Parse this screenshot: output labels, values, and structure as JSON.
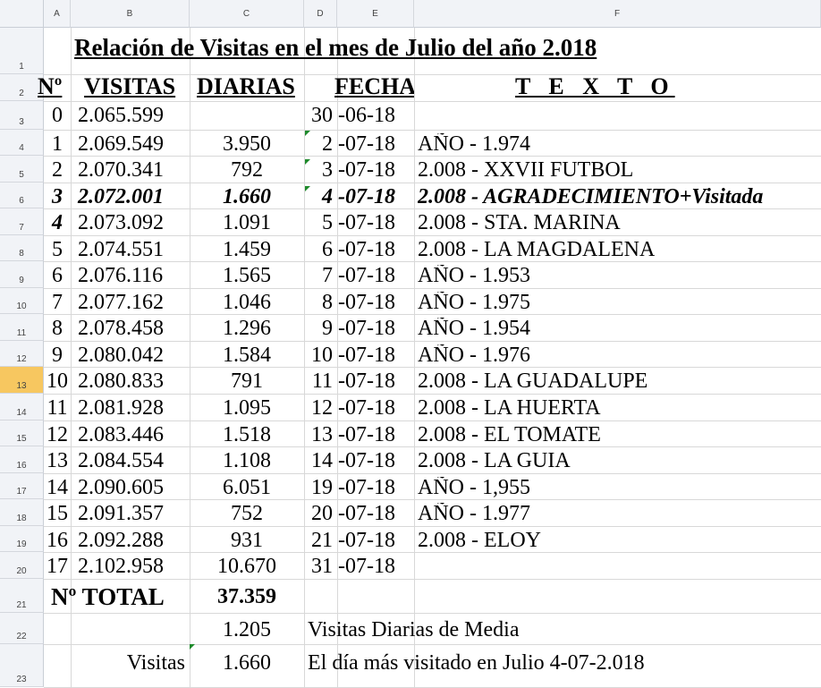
{
  "columns": [
    "A",
    "B",
    "C",
    "D",
    "E",
    "F"
  ],
  "title": "Relación de Visitas en el mes de Julio del año 2.018",
  "headers": {
    "n": "Nº",
    "visitas": "VISITAS",
    "diarias": "DIARIAS",
    "fecha": "FECHA",
    "texto": "T E X T O"
  },
  "rows": [
    {
      "row": "3",
      "n": "0",
      "visitas": "2.065.599",
      "diarias": "",
      "dia": "30",
      "mes": "-06-18",
      "texto": ""
    },
    {
      "row": "4",
      "n": "1",
      "visitas": "2.069.549",
      "diarias": "3.950",
      "dia": "2",
      "mes": "-07-18",
      "texto": "AÑO - 1.974"
    },
    {
      "row": "5",
      "n": "2",
      "visitas": "2.070.341",
      "diarias": "792",
      "dia": "3",
      "mes": "-07-18",
      "texto": "2.008 - XXVII FUTBOL"
    },
    {
      "row": "6",
      "n": "3",
      "visitas": "2.072.001",
      "diarias": "1.660",
      "dia": "4",
      "mes": "-07-18",
      "texto": "2.008 - AGRADECIMIENTO+Visitada"
    },
    {
      "row": "7",
      "n": "4",
      "visitas": "2.073.092",
      "diarias": "1.091",
      "dia": "5",
      "mes": "-07-18",
      "texto": "2.008 - STA. MARINA"
    },
    {
      "row": "8",
      "n": "5",
      "visitas": "2.074.551",
      "diarias": "1.459",
      "dia": "6",
      "mes": "-07-18",
      "texto": "2.008 - LA MAGDALENA"
    },
    {
      "row": "9",
      "n": "6",
      "visitas": "2.076.116",
      "diarias": "1.565",
      "dia": "7",
      "mes": "-07-18",
      "texto": "AÑO - 1.953"
    },
    {
      "row": "10",
      "n": "7",
      "visitas": "2.077.162",
      "diarias": "1.046",
      "dia": "8",
      "mes": "-07-18",
      "texto": "AÑO - 1.975"
    },
    {
      "row": "11",
      "n": "8",
      "visitas": "2.078.458",
      "diarias": "1.296",
      "dia": "9",
      "mes": "-07-18",
      "texto": "AÑO - 1.954"
    },
    {
      "row": "12",
      "n": "9",
      "visitas": "2.080.042",
      "diarias": "1.584",
      "dia": "10",
      "mes": "-07-18",
      "texto": "AÑO - 1.976"
    },
    {
      "row": "13",
      "n": "10",
      "visitas": "2.080.833",
      "diarias": "791",
      "dia": "11",
      "mes": "-07-18",
      "texto": "2.008 - LA GUADALUPE"
    },
    {
      "row": "14",
      "n": "11",
      "visitas": "2.081.928",
      "diarias": "1.095",
      "dia": "12",
      "mes": "-07-18",
      "texto": "2.008 - LA HUERTA"
    },
    {
      "row": "15",
      "n": "12",
      "visitas": "2.083.446",
      "diarias": "1.518",
      "dia": "13",
      "mes": "-07-18",
      "texto": "2.008 - EL TOMATE"
    },
    {
      "row": "16",
      "n": "13",
      "visitas": "2.084.554",
      "diarias": "1.108",
      "dia": "14",
      "mes": "-07-18",
      "texto": "2.008 - LA GUIA"
    },
    {
      "row": "17",
      "n": "14",
      "visitas": "2.090.605",
      "diarias": "6.051",
      "dia": "19",
      "mes": "-07-18",
      "texto": "AÑO - 1,955"
    },
    {
      "row": "18",
      "n": "15",
      "visitas": "2.091.357",
      "diarias": "752",
      "dia": "20",
      "mes": "-07-18",
      "texto": "AÑO - 1.977"
    },
    {
      "row": "19",
      "n": "16",
      "visitas": "2.092.288",
      "diarias": "931",
      "dia": "21",
      "mes": "-07-18",
      "texto": "2.008 - ELOY"
    },
    {
      "row": "20",
      "n": "17",
      "visitas": "2.102.958",
      "diarias": "10.670",
      "dia": "31",
      "mes": "-07-18",
      "texto": ""
    }
  ],
  "summary": {
    "total_label": "Nº TOTAL",
    "total_value": "37.359",
    "media_value": "1.205",
    "media_label": "Visitas Diarias de Media",
    "max_label": "Visitas",
    "max_value": "1.660",
    "max_text": "El día más visitado en Julio  4-07-2.018"
  },
  "row_labels": [
    "1",
    "2",
    "3",
    "4",
    "5",
    "6",
    "7",
    "8",
    "9",
    "10",
    "11",
    "12",
    "13",
    "14",
    "15",
    "16",
    "17",
    "18",
    "19",
    "20",
    "21",
    "22",
    "23"
  ],
  "selected_row": "13",
  "colors": {
    "header_bg": "#f1f3f7",
    "selected_row_bg": "#f7c760",
    "comment_marker": "#1e8a2b",
    "grid": "#d8d8d8"
  }
}
